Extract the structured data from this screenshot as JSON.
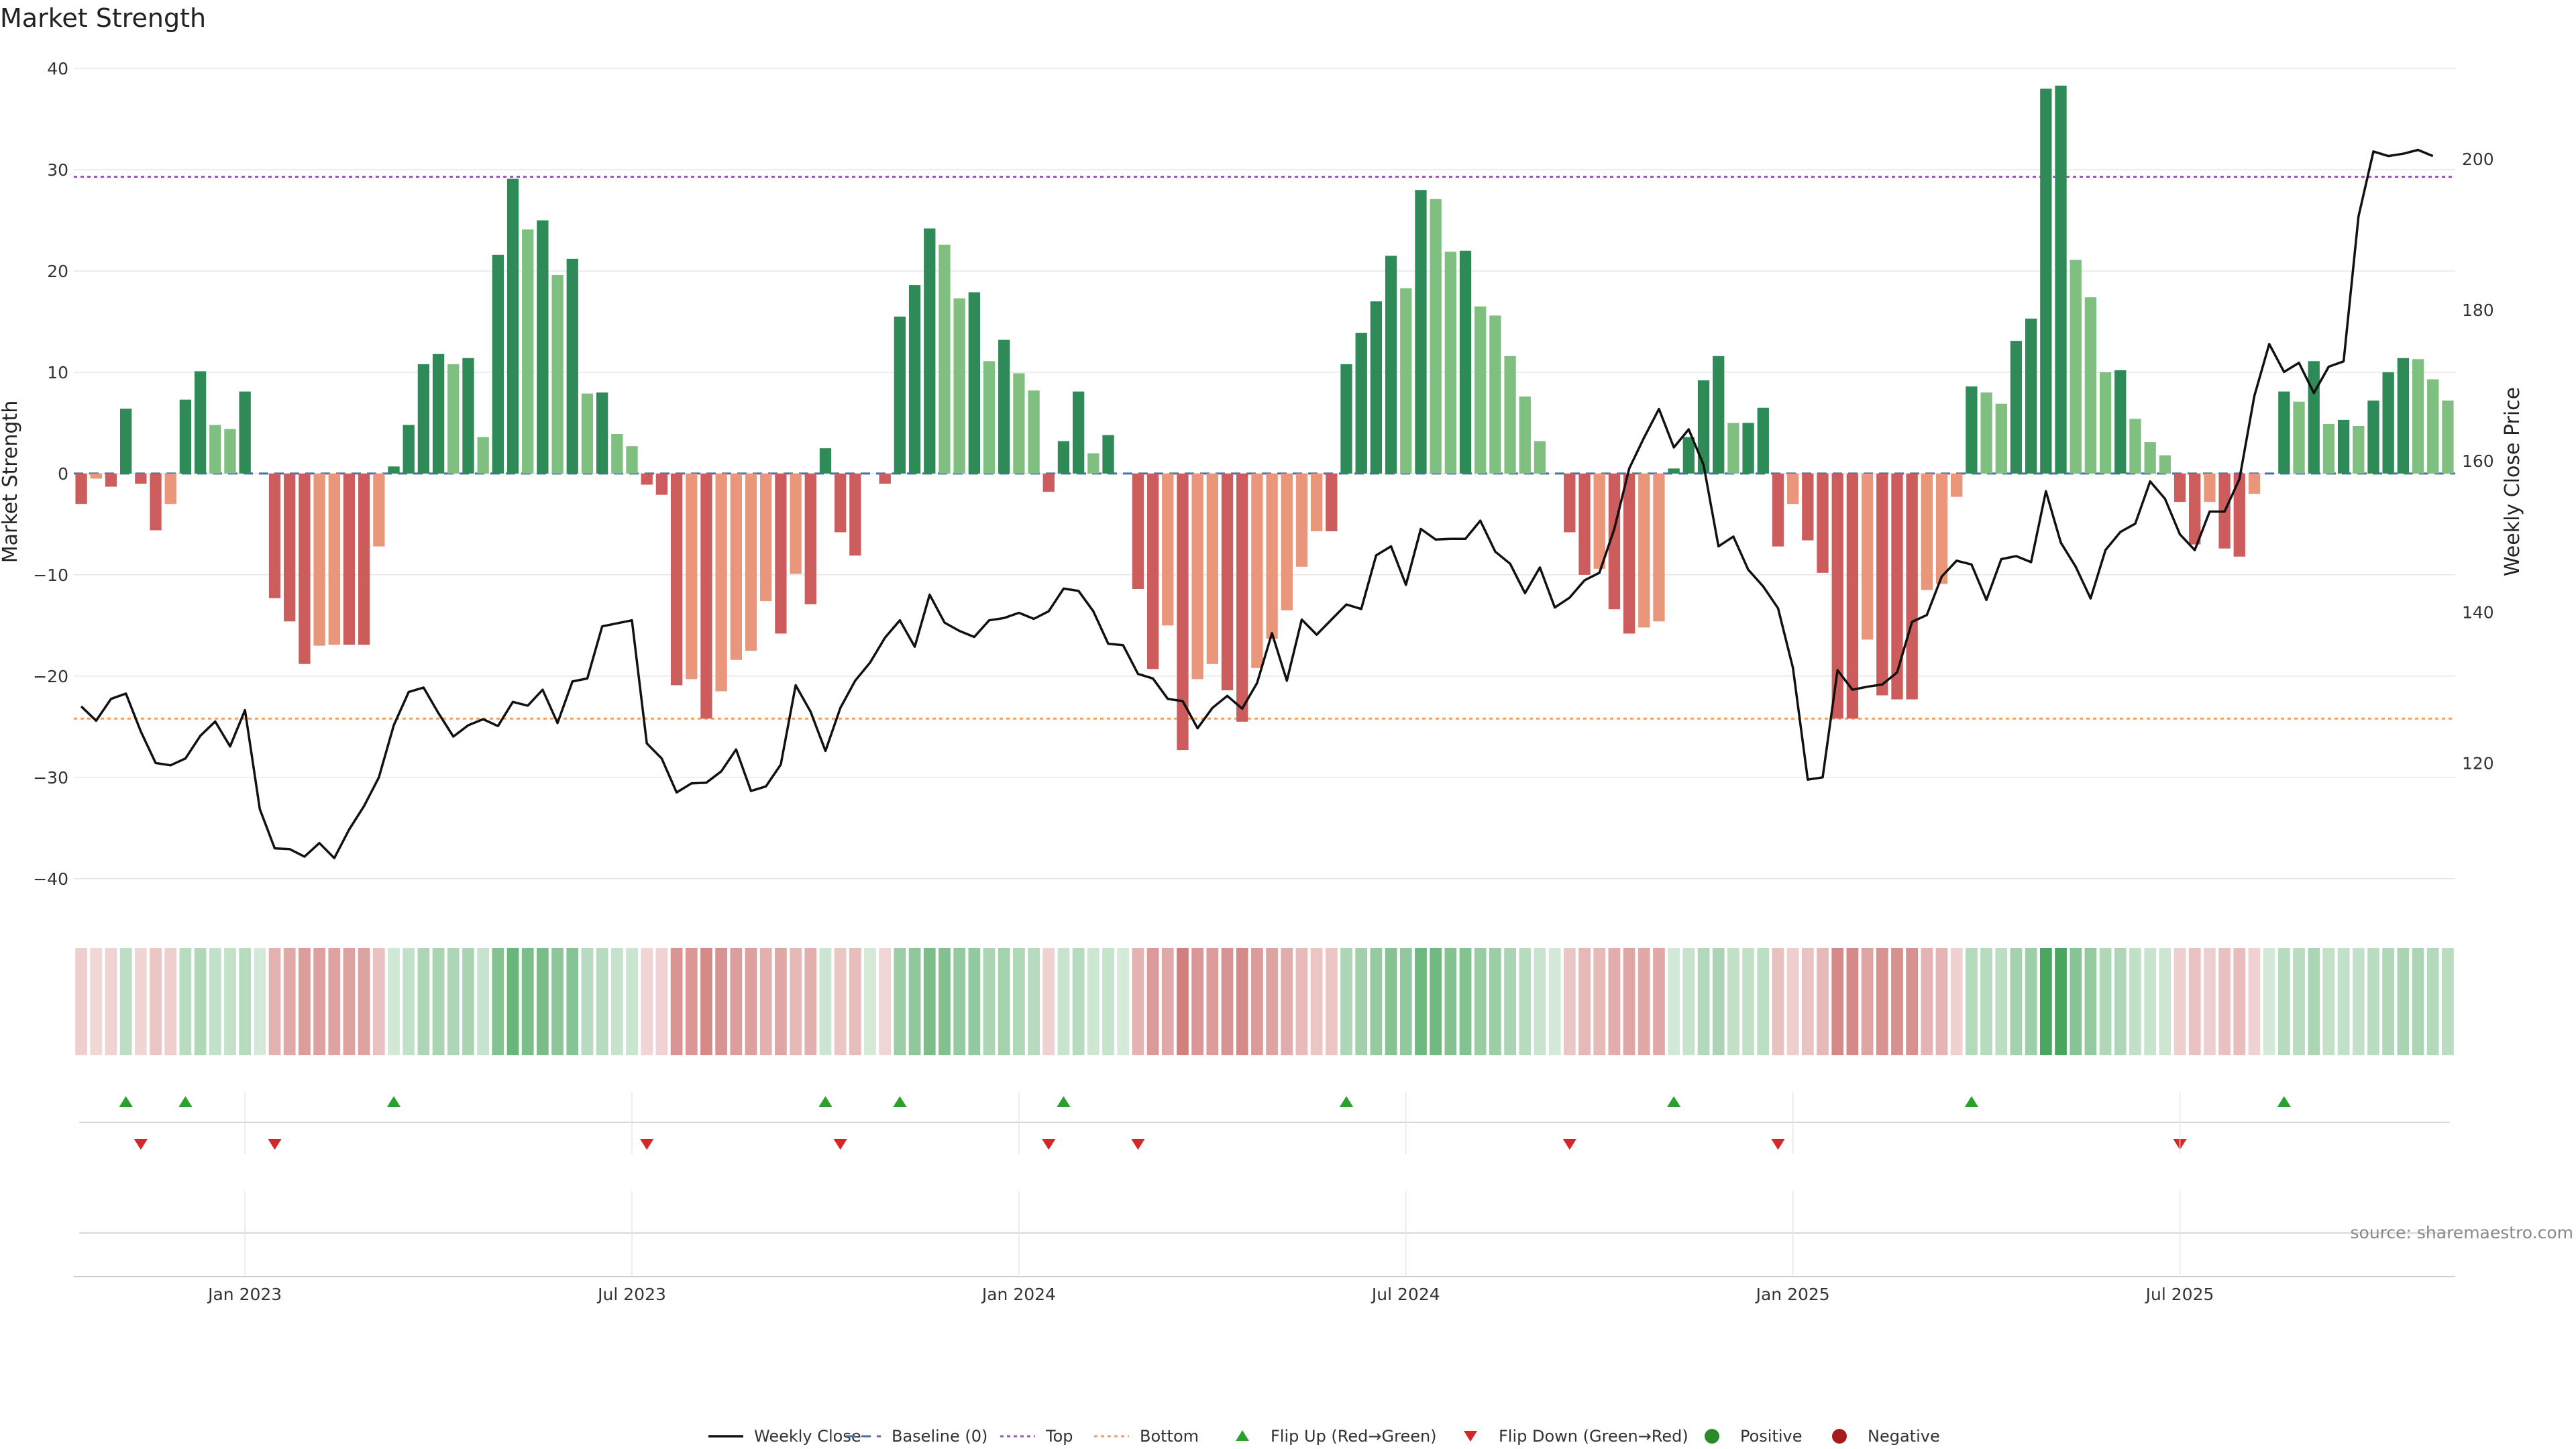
{
  "title": "Market Strength",
  "source_note": "source: sharemaestro.com",
  "colors": {
    "pos_dark": "#2e8b57",
    "pos_light": "#7fbf7f",
    "neg_dark": "#cd5c5c",
    "neg_light": "#e9967a",
    "price_line": "#111111",
    "baseline": "#4a6fa5",
    "top": "#9b59b6",
    "bottom": "#f0a060",
    "flip_up": "#2ca02c",
    "flip_down": "#d62728"
  },
  "chart_data": {
    "type": "bar",
    "title": "Market Strength",
    "ylabel": "Market Strength",
    "y2label": "Weekly Close Price",
    "ylim": [
      -42,
      40
    ],
    "y2lim": [
      102,
      212
    ],
    "yticks": [
      40,
      30,
      20,
      10,
      0,
      -10,
      -20,
      -30,
      -40
    ],
    "y2ticks": [
      200,
      180,
      160,
      140,
      120
    ],
    "top_level": 29.3,
    "bottom_level": -24.2,
    "date_ticks": [
      {
        "week": 11,
        "label": "Jan 2023"
      },
      {
        "week": 37,
        "label": "Jul 2023"
      },
      {
        "week": 63,
        "label": "Jan 2024"
      },
      {
        "week": 89,
        "label": "Jul 2024"
      },
      {
        "week": 115,
        "label": "Jan 2025"
      },
      {
        "week": 141,
        "label": "Jul 2025"
      }
    ],
    "strength": [
      -3,
      -0.5,
      -1.3,
      6.4,
      -1,
      -5.6,
      -3,
      7.3,
      10.1,
      4.8,
      4.4,
      8.1,
      0,
      -12.3,
      -14.6,
      -18.8,
      -17,
      -16.9,
      -16.9,
      -16.9,
      -7.2,
      0.7,
      4.8,
      10.8,
      11.8,
      10.8,
      11.4,
      3.6,
      21.6,
      29.1,
      24.1,
      25,
      19.6,
      21.2,
      7.9,
      8,
      3.9,
      2.7,
      -1.1,
      -2.1,
      -20.9,
      -20.3,
      -24.2,
      -21.5,
      -18.4,
      -17.5,
      -12.6,
      -15.8,
      -9.9,
      -12.9,
      2.5,
      -5.8,
      -8.1,
      0,
      -1,
      15.5,
      18.6,
      24.2,
      22.6,
      17.3,
      17.9,
      11.1,
      13.2,
      9.9,
      8.2,
      -1.8,
      3.2,
      8.1,
      2,
      3.8,
      0,
      -11.4,
      -19.3,
      -15,
      -27.3,
      -20.3,
      -18.8,
      -21.4,
      -24.5,
      -19.2,
      -16.3,
      -13.5,
      -9.2,
      -5.7,
      -5.7,
      10.8,
      13.9,
      17,
      21.5,
      18.3,
      28,
      27.1,
      21.9,
      22,
      16.5,
      15.6,
      11.6,
      7.6,
      3.2,
      0,
      -5.8,
      -10,
      -9.4,
      -13.4,
      -15.8,
      -15.2,
      -14.6,
      0.5,
      3.6,
      9.2,
      11.6,
      5,
      5,
      6.5,
      -7.2,
      -3,
      -6.6,
      -9.8,
      -24.2,
      -24.2,
      -16.4,
      -21.9,
      -22.3,
      -22.3,
      -11.5,
      -10.9,
      -2.3,
      8.6,
      8,
      6.9,
      13.1,
      15.3,
      38,
      38.3,
      21.1,
      17.4,
      10,
      10.2,
      5.4,
      3.1,
      1.8,
      -2.8,
      -7,
      -2.8,
      -7.4,
      -8.2,
      -2,
      0,
      8.1,
      7.1,
      11.1,
      4.9,
      5.3,
      4.7,
      7.2,
      10,
      11.4,
      11.3,
      9.3,
      7.2
    ],
    "close": [
      127.5,
      125.6,
      128.5,
      129.2,
      124.2,
      120,
      119.7,
      120.6,
      123.6,
      125.5,
      122.2,
      127,
      113.9,
      108.7,
      108.6,
      107.6,
      109.4,
      107.4,
      111.2,
      114.3,
      118.1,
      125,
      129.4,
      130,
      126.6,
      123.5,
      125,
      125.8,
      124.9,
      128.1,
      127.6,
      129.7,
      125.3,
      130.8,
      131.2,
      138.1,
      138.5,
      138.9,
      122.6,
      120.6,
      116.1,
      117.3,
      117.4,
      118.9,
      121.8,
      116.3,
      116.9,
      119.8,
      130.3,
      126.8,
      121.6,
      127.3,
      130.9,
      133.3,
      136.6,
      138.9,
      135.4,
      142.3,
      138.6,
      137.5,
      136.7,
      138.9,
      139.2,
      139.9,
      139.1,
      140.1,
      143.1,
      142.8,
      140.1,
      135.8,
      135.6,
      131.8,
      131.2,
      128.5,
      128.2,
      124.6,
      127.3,
      128.9,
      127.2,
      130.6,
      137.2,
      130.9,
      139,
      137,
      139,
      141,
      140.4,
      147.5,
      148.7,
      143.6,
      151,
      149.6,
      149.7,
      149.7,
      152.1,
      148,
      146.4,
      142.5,
      145.9,
      140.6,
      141.9,
      144.2,
      145.2,
      151,
      159,
      163.1,
      166.9,
      161.8,
      164.2,
      159.5,
      148.7,
      150,
      145.6,
      143.4,
      140.5,
      132.6,
      117.8,
      118.1,
      132.3,
      129.7,
      130.1,
      130.4,
      132,
      138.7,
      139.6,
      144.7,
      146.8,
      146.3,
      141.6,
      147,
      147.4,
      146.6,
      156,
      149.2,
      146,
      141.8,
      148.2,
      150.6,
      151.7,
      157.3,
      155,
      150.3,
      148.2,
      153.3,
      153.3,
      157.6,
      168.6,
      175.5,
      171.8,
      173,
      169,
      172.5,
      173.2,
      192.4,
      201,
      200.4,
      200.7,
      201.2,
      200.4
    ]
  },
  "legend": [
    {
      "key": "line",
      "label": "Weekly Close"
    },
    {
      "key": "baseline",
      "label": "Baseline (0)"
    },
    {
      "key": "top",
      "label": "Top"
    },
    {
      "key": "bottom",
      "label": "Bottom"
    },
    {
      "key": "flip_up",
      "label": "Flip Up (Red→Green)"
    },
    {
      "key": "flip_down",
      "label": "Flip Down (Green→Red)"
    },
    {
      "key": "positive",
      "label": "Positive"
    },
    {
      "key": "negative",
      "label": "Negative"
    }
  ]
}
